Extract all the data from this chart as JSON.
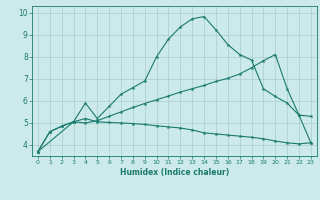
{
  "title": "",
  "xlabel": "Humidex (Indice chaleur)",
  "background_color": "#cceaea",
  "grid_color": "#aacccc",
  "line_color": "#1a7a6e",
  "tick_color": "#1a7a6e",
  "xlim": [
    -0.5,
    23.5
  ],
  "ylim": [
    3.5,
    10.3
  ],
  "xticks": [
    0,
    1,
    2,
    3,
    4,
    5,
    6,
    7,
    8,
    9,
    10,
    11,
    12,
    13,
    14,
    15,
    16,
    17,
    18,
    19,
    20,
    21,
    22,
    23
  ],
  "yticks": [
    4,
    5,
    6,
    7,
    8,
    9,
    10
  ],
  "line1_x": [
    0,
    1,
    2,
    3,
    4,
    5,
    6,
    7,
    8,
    9,
    10,
    11,
    12,
    13,
    14,
    15,
    16,
    17,
    18,
    19,
    20,
    21,
    22,
    23
  ],
  "line1_y": [
    3.7,
    4.6,
    4.85,
    5.05,
    5.2,
    5.05,
    5.02,
    5.0,
    4.97,
    4.93,
    4.87,
    4.82,
    4.77,
    4.68,
    4.55,
    4.5,
    4.45,
    4.4,
    4.35,
    4.28,
    4.18,
    4.1,
    4.05,
    4.1
  ],
  "line2_x": [
    0,
    1,
    2,
    3,
    4,
    5,
    6,
    7,
    8,
    9,
    10,
    11,
    12,
    13,
    14,
    15,
    16,
    17,
    18,
    19,
    20,
    21,
    22,
    23
  ],
  "line2_y": [
    3.7,
    4.6,
    4.85,
    5.05,
    5.9,
    5.2,
    5.75,
    6.3,
    6.6,
    6.9,
    8.0,
    8.8,
    9.35,
    9.72,
    9.82,
    9.22,
    8.55,
    8.1,
    7.85,
    6.55,
    6.2,
    5.9,
    5.35,
    5.3
  ],
  "line3_x": [
    0,
    3,
    4,
    5,
    6,
    7,
    8,
    9,
    10,
    11,
    12,
    13,
    14,
    15,
    16,
    17,
    18,
    19,
    20,
    21,
    22,
    23
  ],
  "line3_y": [
    3.7,
    5.05,
    5.0,
    5.1,
    5.3,
    5.5,
    5.7,
    5.88,
    6.05,
    6.22,
    6.4,
    6.55,
    6.7,
    6.88,
    7.02,
    7.22,
    7.5,
    7.82,
    8.1,
    6.55,
    5.35,
    4.1
  ]
}
